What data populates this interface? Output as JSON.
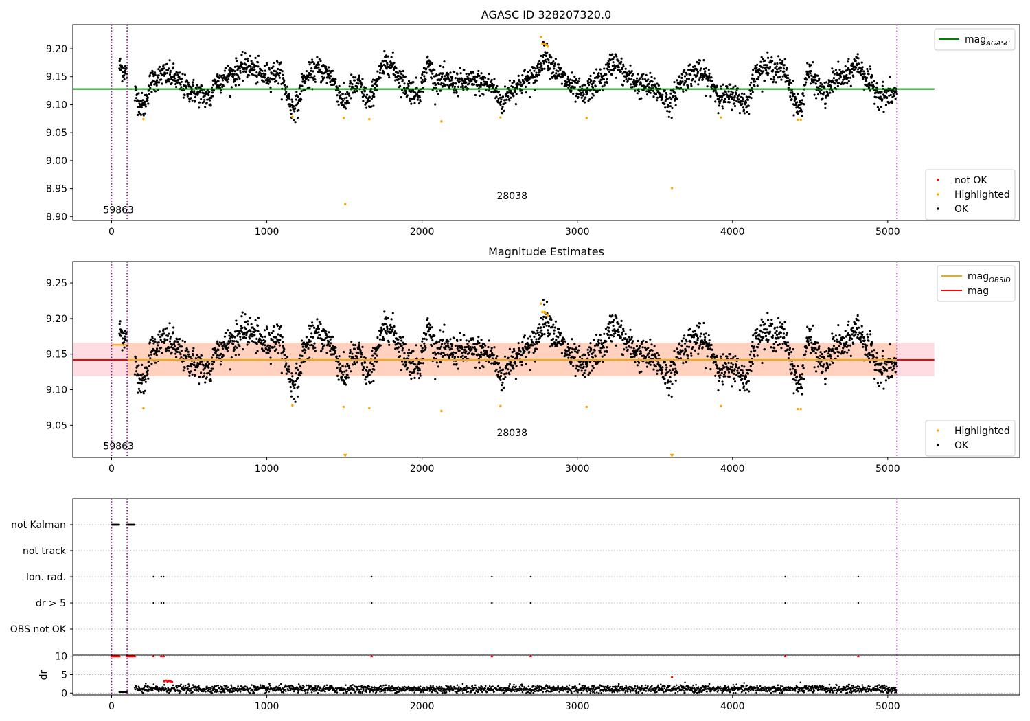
{
  "chart_data": [
    {
      "type": "scatter",
      "title": "AGASC ID 328207320.0",
      "xlim": [
        -250,
        5850
      ],
      "ylim": [
        8.893,
        9.243
      ],
      "x_ticks": [
        0,
        1000,
        2000,
        3000,
        4000,
        5000
      ],
      "y_ticks": [
        8.9,
        8.95,
        9.0,
        9.05,
        9.1,
        9.15,
        9.2
      ],
      "y_tick_labels": [
        "8.90",
        "8.95",
        "9.00",
        "9.05",
        "9.10",
        "9.15",
        "9.20"
      ],
      "grid": false,
      "obsid_boundaries": [
        0,
        100,
        5060
      ],
      "annotations": [
        {
          "text": "59863",
          "x": 45,
          "y": 8.906
        },
        {
          "text": "28038",
          "x": 2580,
          "y": 8.931
        }
      ],
      "reference_lines": [
        {
          "name": "mag_AGASC",
          "y": 9.128,
          "x": [
            -250,
            5300
          ],
          "color": "#008000"
        }
      ],
      "legend_top": {
        "placement": "upper right",
        "entries": [
          {
            "label": "mag",
            "sub": "AGASC",
            "color": "#008000",
            "kind": "line"
          }
        ]
      },
      "legend_bottom": {
        "placement": "lower right",
        "entries": [
          {
            "label": "not OK",
            "color": "#ff0000",
            "kind": "dot"
          },
          {
            "label": "Highlighted",
            "color": "#ffa500",
            "kind": "dot"
          },
          {
            "label": "OK",
            "color": "#000000",
            "kind": "dot"
          }
        ]
      },
      "highlighted_points": {
        "x": [
          205,
          1165,
          1495,
          1660,
          2125,
          2505,
          3060,
          3610,
          3925,
          4420,
          4440,
          1505,
          2765,
          2775,
          2790,
          2800,
          2810
        ],
        "y": [
          9.074,
          9.078,
          9.076,
          9.074,
          9.07,
          9.077,
          9.076,
          8.951,
          9.077,
          9.073,
          9.073,
          8.922,
          9.221,
          9.209,
          9.209,
          9.207,
          9.204
        ]
      },
      "series_segments": [
        {
          "start": 50,
          "end": 100,
          "knots": [
            [
              50,
              9.168
            ],
            [
              75,
              9.163
            ],
            [
              100,
              9.155
            ]
          ]
        },
        {
          "start": 150,
          "end": 5060,
          "knots": [
            [
              150,
              9.12
            ],
            [
              190,
              9.1
            ],
            [
              210,
              9.095
            ],
            [
              250,
              9.14
            ],
            [
              330,
              9.155
            ],
            [
              400,
              9.15
            ],
            [
              470,
              9.13
            ],
            [
              560,
              9.12
            ],
            [
              640,
              9.11
            ],
            [
              660,
              9.14
            ],
            [
              780,
              9.155
            ],
            [
              880,
              9.17
            ],
            [
              980,
              9.15
            ],
            [
              1080,
              9.16
            ],
            [
              1160,
              9.095
            ],
            [
              1200,
              9.1
            ],
            [
              1230,
              9.14
            ],
            [
              1330,
              9.165
            ],
            [
              1420,
              9.15
            ],
            [
              1500,
              9.1
            ],
            [
              1540,
              9.13
            ],
            [
              1600,
              9.135
            ],
            [
              1660,
              9.1
            ],
            [
              1700,
              9.14
            ],
            [
              1780,
              9.18
            ],
            [
              1830,
              9.16
            ],
            [
              1900,
              9.13
            ],
            [
              1980,
              9.12
            ],
            [
              2040,
              9.175
            ],
            [
              2080,
              9.145
            ],
            [
              2200,
              9.14
            ],
            [
              2350,
              9.14
            ],
            [
              2450,
              9.135
            ],
            [
              2520,
              9.1
            ],
            [
              2560,
              9.125
            ],
            [
              2650,
              9.14
            ],
            [
              2730,
              9.15
            ],
            [
              2790,
              9.192
            ],
            [
              2850,
              9.165
            ],
            [
              2950,
              9.135
            ],
            [
              3040,
              9.115
            ],
            [
              3080,
              9.13
            ],
            [
              3180,
              9.15
            ],
            [
              3230,
              9.18
            ],
            [
              3300,
              9.155
            ],
            [
              3400,
              9.135
            ],
            [
              3500,
              9.13
            ],
            [
              3600,
              9.1
            ],
            [
              3660,
              9.14
            ],
            [
              3760,
              9.16
            ],
            [
              3850,
              9.145
            ],
            [
              3930,
              9.11
            ],
            [
              4000,
              9.12
            ],
            [
              4090,
              9.1
            ],
            [
              4160,
              9.165
            ],
            [
              4250,
              9.165
            ],
            [
              4340,
              9.16
            ],
            [
              4410,
              9.1
            ],
            [
              4440,
              9.09
            ],
            [
              4480,
              9.16
            ],
            [
              4560,
              9.13
            ],
            [
              4600,
              9.115
            ],
            [
              4650,
              9.145
            ],
            [
              4740,
              9.15
            ],
            [
              4800,
              9.175
            ],
            [
              4880,
              9.14
            ],
            [
              4960,
              9.115
            ],
            [
              5060,
              9.12
            ]
          ]
        }
      ]
    },
    {
      "type": "scatter",
      "title": "Magnitude Estimates",
      "xlim": [
        -250,
        5850
      ],
      "ylim": [
        9.005,
        9.28
      ],
      "x_ticks": [
        0,
        1000,
        2000,
        3000,
        4000,
        5000
      ],
      "y_ticks": [
        9.05,
        9.1,
        9.15,
        9.2,
        9.25
      ],
      "y_tick_labels": [
        "9.05",
        "9.10",
        "9.15",
        "9.20",
        "9.25"
      ],
      "grid": false,
      "obsid_boundaries": [
        0,
        100,
        5060
      ],
      "annotations": [
        {
          "text": "59863",
          "x": 45,
          "y": 9.016
        },
        {
          "text": "28038",
          "x": 2580,
          "y": 9.035
        }
      ],
      "reference_lines": [
        {
          "name": "mag",
          "y": 9.142,
          "x": [
            -250,
            5300
          ],
          "color": "#ff0000"
        },
        {
          "name": "mag_OBSID_1",
          "y": 9.163,
          "x": [
            0,
            100
          ],
          "color": "#ffa500"
        },
        {
          "name": "mag_OBSID_2",
          "y": 9.142,
          "x": [
            100,
            5060
          ],
          "color": "#ffa500"
        }
      ],
      "bands": [
        {
          "y0": 9.119,
          "y1": 9.166,
          "x0": -250,
          "x1": 5300,
          "color": "#ffc0cb"
        },
        {
          "y0": 9.119,
          "y1": 9.166,
          "x0": 100,
          "x1": 5060,
          "color": "#ffc8a0"
        }
      ],
      "off_scale_markers": {
        "x": [
          1505,
          3610
        ],
        "y": 9.007,
        "color": "#ffa500"
      },
      "legend_top": {
        "placement": "upper right",
        "entries": [
          {
            "label": "mag",
            "sub": "OBSID",
            "color": "#ffa500",
            "kind": "line"
          },
          {
            "label": "mag",
            "sub": "",
            "color": "#ff0000",
            "kind": "line"
          }
        ]
      },
      "legend_bottom": {
        "placement": "lower right",
        "entries": [
          {
            "label": "Highlighted",
            "color": "#ffa500",
            "kind": "dot"
          },
          {
            "label": "OK",
            "color": "#000000",
            "kind": "dot"
          }
        ]
      },
      "highlighted_points": {
        "x": [
          205,
          1165,
          1495,
          1660,
          2125,
          2505,
          3060,
          3925,
          4420,
          4440,
          2765,
          2775,
          2790,
          2800,
          2810
        ],
        "y": [
          9.074,
          9.078,
          9.076,
          9.074,
          9.07,
          9.077,
          9.076,
          9.077,
          9.073,
          9.073,
          9.221,
          9.209,
          9.209,
          9.207,
          9.204
        ]
      }
    },
    {
      "type": "scatter",
      "title": "",
      "xlim": [
        -250,
        5850
      ],
      "x_ticks": [
        0,
        1000,
        2000,
        3000,
        4000,
        5000
      ],
      "flag_rows": [
        "not Kalman",
        "not track",
        "Ion. rad.",
        "dr > 5",
        "OBS not OK"
      ],
      "grid": true,
      "obsid_boundaries": [
        0,
        100,
        5060
      ],
      "flags": {
        "not Kalman": [
          [
            0,
            50
          ],
          [
            100,
            150
          ]
        ],
        "not track": [],
        "Ion. rad.": [
          270,
          320,
          335,
          1675,
          2450,
          2700,
          4340,
          4810
        ],
        "dr > 5": [
          270,
          320,
          335,
          1675,
          2450,
          2700,
          4340,
          4810
        ],
        "OBS not OK": []
      },
      "dr": {
        "ylabel": "dr",
        "ylim": [
          -0.5,
          10.3
        ],
        "y_ticks": [
          0,
          5,
          10
        ],
        "y_tick_labels": [
          "0",
          "5",
          "10"
        ],
        "clipped_value": 10,
        "clipped_red_x": [
          0,
          10,
          20,
          30,
          40,
          50,
          100,
          110,
          120,
          130,
          140,
          150,
          270,
          320,
          335,
          1675,
          2450,
          2700,
          4340,
          4810
        ],
        "red_points": {
          "x": [
            340,
            350,
            360,
            370,
            380,
            390,
            3610
          ],
          "y": [
            3.2,
            3.4,
            3.1,
            3.3,
            3.2,
            3.0,
            4.3
          ]
        }
      }
    }
  ]
}
